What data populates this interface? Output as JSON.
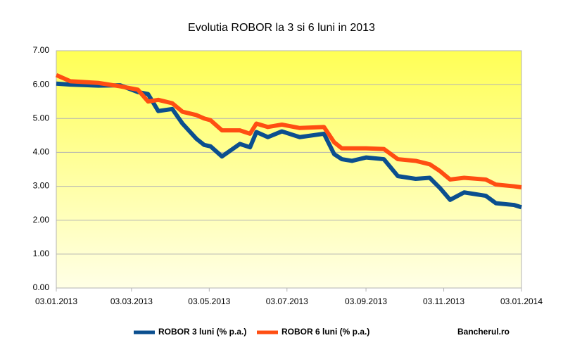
{
  "chart_data": {
    "type": "line",
    "title": "Evolutia ROBOR la 3 si 6 luni in 2013",
    "x": [
      "03.01.2013",
      "14.01.2013",
      "05.02.2013",
      "22.02.2013",
      "08.03.2013",
      "16.03.2013",
      "24.03.2013",
      "04.04.2013",
      "12.04.2013",
      "23.04.2013",
      "29.04.2013",
      "04.05.2013",
      "13.05.2013",
      "27.05.2013",
      "04.06.2013",
      "09.06.2013",
      "18.06.2013",
      "29.06.2013",
      "13.07.2013",
      "01.08.2013",
      "09.08.2013",
      "15.08.2013",
      "23.08.2013",
      "03.09.2013",
      "17.09.2013",
      "28.09.2013",
      "12.10.2013",
      "23.10.2013",
      "31.10.2013",
      "08.11.2013",
      "19.11.2013",
      "06.12.2013",
      "14.12.2013",
      "28.12.2013",
      "03.01.2014"
    ],
    "series": [
      {
        "name": "ROBOR 3 luni (% p.a.)",
        "color": "#0b4f8f",
        "values": [
          6.03,
          6.0,
          5.97,
          5.98,
          5.78,
          5.72,
          5.22,
          5.28,
          4.85,
          4.4,
          4.22,
          4.18,
          3.88,
          4.25,
          4.15,
          4.6,
          4.45,
          4.62,
          4.45,
          4.55,
          3.95,
          3.8,
          3.75,
          3.85,
          3.8,
          3.3,
          3.22,
          3.25,
          2.95,
          2.6,
          2.82,
          2.72,
          2.5,
          2.45,
          2.38
        ]
      },
      {
        "name": "ROBOR 6 luni (% p.a.)",
        "color": "#ff4e12",
        "values": [
          6.28,
          6.1,
          6.05,
          5.95,
          5.85,
          5.5,
          5.55,
          5.45,
          5.2,
          5.1,
          5.0,
          4.95,
          4.65,
          4.65,
          4.55,
          4.85,
          4.75,
          4.82,
          4.72,
          4.75,
          4.3,
          4.12,
          4.12,
          4.12,
          4.1,
          3.8,
          3.75,
          3.65,
          3.45,
          3.2,
          3.25,
          3.2,
          3.05,
          3.0,
          2.97
        ]
      }
    ],
    "xlim": [
      "03.01.2013",
      "03.01.2014"
    ],
    "xticks": [
      "03.01.2013",
      "03.03.2013",
      "03.05.2013",
      "03.07.2013",
      "03.09.2013",
      "03.11.2013",
      "03.01.2014"
    ],
    "ylim": [
      0,
      7
    ],
    "yticks": [
      {
        "value": 0,
        "label": "0.00"
      },
      {
        "value": 1,
        "label": "1.00"
      },
      {
        "value": 2,
        "label": "2.00"
      },
      {
        "value": 3,
        "label": "3.00"
      },
      {
        "value": 4,
        "label": "4.00"
      },
      {
        "value": 5,
        "label": "5.00"
      },
      {
        "value": 6,
        "label": "6.00"
      },
      {
        "value": 7,
        "label": "7.00"
      }
    ],
    "grid": true,
    "legend": "bottom",
    "annotation": "Bancherul.ro"
  }
}
